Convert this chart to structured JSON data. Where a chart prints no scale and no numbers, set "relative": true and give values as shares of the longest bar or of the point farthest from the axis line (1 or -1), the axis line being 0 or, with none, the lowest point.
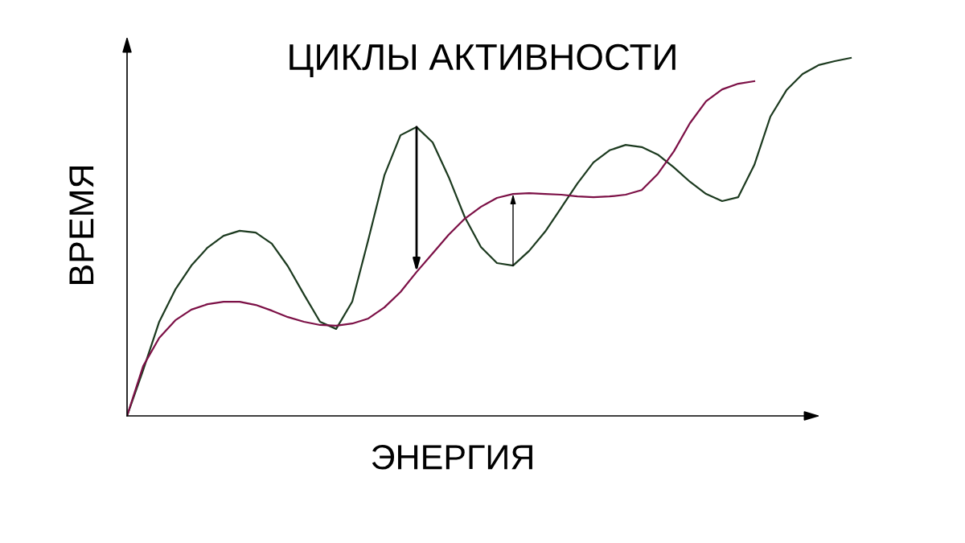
{
  "chart_data": {
    "type": "line",
    "title": "ЦИКЛЫ АКТИВНОСТИ",
    "xlabel": "ЭНЕРГИЯ",
    "ylabel": "ВРЕМЯ",
    "relative": true,
    "grid": false,
    "legend": false,
    "marker": "none",
    "line_style": "solid",
    "categories": [
      null,
      null,
      null,
      null,
      null,
      null,
      null,
      null,
      null,
      null,
      null,
      null,
      null,
      null,
      null,
      null,
      null,
      null,
      null,
      null,
      null,
      null,
      null,
      null,
      null,
      null,
      null,
      null,
      null,
      null,
      null,
      null,
      null,
      null,
      null,
      null,
      null,
      null,
      null,
      null,
      null,
      null,
      null,
      null,
      null,
      null
    ],
    "series": [
      {
        "color": "#1c3a1f",
        "values": [
          0,
          0.128,
          0.263,
          0.353,
          0.42,
          0.47,
          0.503,
          0.517,
          0.512,
          0.481,
          0.418,
          0.339,
          0.263,
          0.243,
          0.319,
          0.492,
          0.672,
          0.784,
          0.807,
          0.764,
          0.667,
          0.555,
          0.472,
          0.427,
          0.42,
          0.461,
          0.515,
          0.582,
          0.649,
          0.708,
          0.742,
          0.757,
          0.751,
          0.73,
          0.694,
          0.654,
          0.62,
          0.6,
          0.611,
          0.701,
          0.836,
          0.91,
          0.955,
          0.98,
          0.991,
          1.0
        ]
      },
      {
        "color": "#7c1046",
        "values": [
          0,
          0.139,
          0.218,
          0.267,
          0.297,
          0.312,
          0.319,
          0.319,
          0.31,
          0.294,
          0.276,
          0.263,
          0.254,
          0.252,
          0.258,
          0.272,
          0.303,
          0.346,
          0.402,
          0.454,
          0.506,
          0.551,
          0.584,
          0.609,
          0.62,
          0.622,
          0.62,
          0.618,
          0.613,
          0.611,
          0.613,
          0.618,
          0.631,
          0.676,
          0.739,
          0.818,
          0.879,
          0.912,
          0.928,
          0.935,
          null,
          null,
          null,
          null,
          null,
          null
        ]
      }
    ]
  }
}
